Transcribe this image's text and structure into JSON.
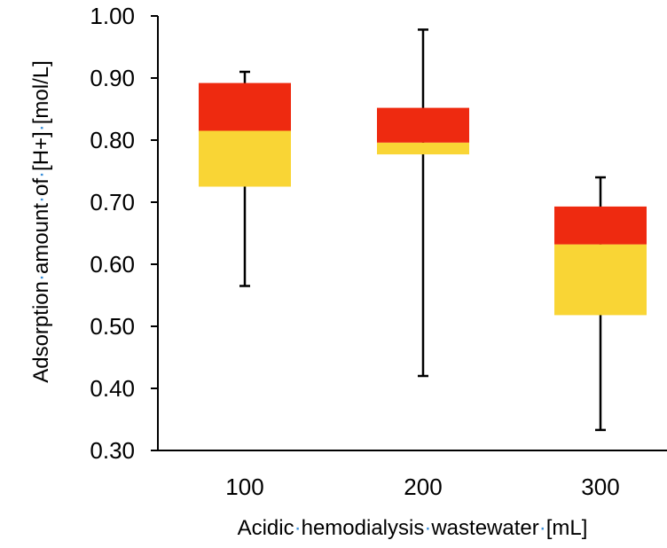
{
  "chart_data": {
    "type": "box",
    "categories": [
      "100",
      "200",
      "300"
    ],
    "boxes": [
      {
        "category": "100",
        "min": 0.565,
        "q1": 0.725,
        "median": 0.815,
        "q3": 0.892,
        "max": 0.91
      },
      {
        "category": "200",
        "min": 0.42,
        "q1": 0.777,
        "median": 0.796,
        "q3": 0.852,
        "max": 0.978
      },
      {
        "category": "300",
        "min": 0.333,
        "q1": 0.518,
        "median": 0.632,
        "q3": 0.693,
        "max": 0.74
      }
    ],
    "xlabel": "Acidic hemodialysis wastewater [mL]",
    "ylabel": "Adsorption amount of [H+] [mol/L]",
    "ylim": [
      0.3,
      1.0
    ],
    "yticks": [
      "0.30",
      "0.40",
      "0.50",
      "0.60",
      "0.70",
      "0.80",
      "0.90",
      "1.00"
    ],
    "colors": {
      "lower_box": "#f9d535",
      "upper_box": "#ee2a10",
      "whisker": "#000000"
    },
    "grid": false,
    "legend": "none"
  }
}
